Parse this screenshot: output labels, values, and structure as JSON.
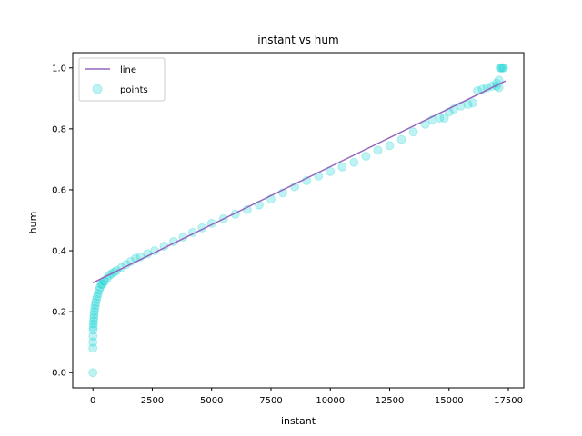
{
  "chart_data": {
    "type": "scatter",
    "title": "instant vs hum",
    "xlabel": "instant",
    "ylabel": "hum",
    "xlim": [
      -850,
      18150
    ],
    "ylim": [
      -0.05,
      1.05
    ],
    "xticks": [
      0,
      2500,
      5000,
      7500,
      10000,
      12500,
      15000,
      17500
    ],
    "yticks": [
      0.0,
      0.2,
      0.4,
      0.6,
      0.8,
      1.0
    ],
    "xtick_labels": [
      "0",
      "2500",
      "5000",
      "7500",
      "10000",
      "12500",
      "15000",
      "17500"
    ],
    "ytick_labels": [
      "0.0",
      "0.2",
      "0.4",
      "0.6",
      "0.8",
      "1.0"
    ],
    "grid": false,
    "legend_position": "top-left",
    "series": [
      {
        "name": "line",
        "kind": "line",
        "color": "#9467bd",
        "x": [
          0,
          17379
        ],
        "y": [
          0.295,
          0.957
        ]
      },
      {
        "name": "points",
        "kind": "scatter",
        "color": "#00ced1",
        "x": [
          0,
          0,
          0,
          5,
          10,
          15,
          20,
          30,
          40,
          50,
          60,
          80,
          100,
          120,
          150,
          180,
          220,
          260,
          300,
          350,
          400,
          450,
          500,
          600,
          700,
          800,
          900,
          1000,
          1200,
          1400,
          1600,
          1800,
          2000,
          2300,
          2600,
          3000,
          3400,
          3800,
          4200,
          4600,
          5000,
          5500,
          6000,
          6500,
          7000,
          7500,
          8000,
          8500,
          9000,
          9500,
          10000,
          10500,
          11000,
          11500,
          12000,
          12500,
          13000,
          13500,
          14000,
          14300,
          14600,
          14800,
          15000,
          15200,
          15500,
          15800,
          16000,
          16200,
          16400,
          16600,
          16800,
          17000,
          17100,
          17150,
          17200,
          17250,
          17300,
          17100,
          17000
        ],
        "y": [
          0.0,
          0.08,
          0.1,
          0.12,
          0.14,
          0.15,
          0.16,
          0.17,
          0.18,
          0.19,
          0.2,
          0.21,
          0.22,
          0.23,
          0.24,
          0.25,
          0.26,
          0.27,
          0.28,
          0.29,
          0.29,
          0.3,
          0.3,
          0.31,
          0.32,
          0.325,
          0.33,
          0.335,
          0.345,
          0.355,
          0.365,
          0.375,
          0.38,
          0.39,
          0.4,
          0.415,
          0.43,
          0.445,
          0.46,
          0.475,
          0.49,
          0.505,
          0.52,
          0.535,
          0.55,
          0.57,
          0.59,
          0.61,
          0.63,
          0.645,
          0.66,
          0.675,
          0.69,
          0.71,
          0.73,
          0.745,
          0.765,
          0.79,
          0.815,
          0.83,
          0.835,
          0.835,
          0.855,
          0.865,
          0.875,
          0.88,
          0.885,
          0.925,
          0.93,
          0.935,
          0.94,
          0.95,
          0.96,
          1.0,
          1.0,
          1.0,
          1.0,
          0.935,
          0.94
        ]
      }
    ]
  }
}
